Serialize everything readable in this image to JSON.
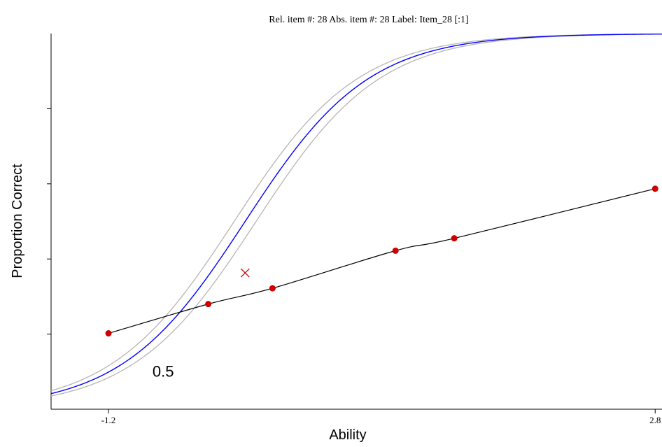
{
  "chart_data": {
    "type": "line",
    "title": "Rel. item #: 28  Abs. item #: 28  Label: Item_28  [:1]",
    "xlabel": "Ability",
    "ylabel": "Proportion Correct",
    "xlim": [
      -1.62,
      2.85
    ],
    "ylim": [
      0.0,
      1.0
    ],
    "x_ticks": [
      {
        "value": -1.2,
        "label": "-1.2"
      },
      {
        "value": 2.8,
        "label": "2.8"
      }
    ],
    "y_ticks": [
      0.2,
      0.4,
      0.6,
      0.8
    ],
    "grid": false,
    "legend": "none",
    "annotation": {
      "text": "0.5",
      "x": -0.8,
      "y": 0.087
    },
    "item_marker": {
      "x": -0.2,
      "y": 0.363
    },
    "series": [
      {
        "role": "model",
        "color": "#0000ff",
        "icc": {
          "a": 1.3,
          "b": -0.2,
          "c": 0.0
        }
      },
      {
        "role": "confidence-band",
        "color": "#b8b4b4",
        "icc_upper": {
          "a": 1.3,
          "b": -0.28,
          "c": 0.0
        },
        "icc_lower": {
          "a": 1.3,
          "b": -0.12,
          "c": 0.0
        }
      },
      {
        "role": "empirical",
        "color": "#000000",
        "point_color": "#cc0000",
        "x": [
          -1.2,
          -0.47,
          0.0,
          0.9,
          1.33,
          2.8
        ],
        "y": [
          0.202,
          0.28,
          0.322,
          0.422,
          0.455,
          0.587
        ]
      }
    ]
  }
}
